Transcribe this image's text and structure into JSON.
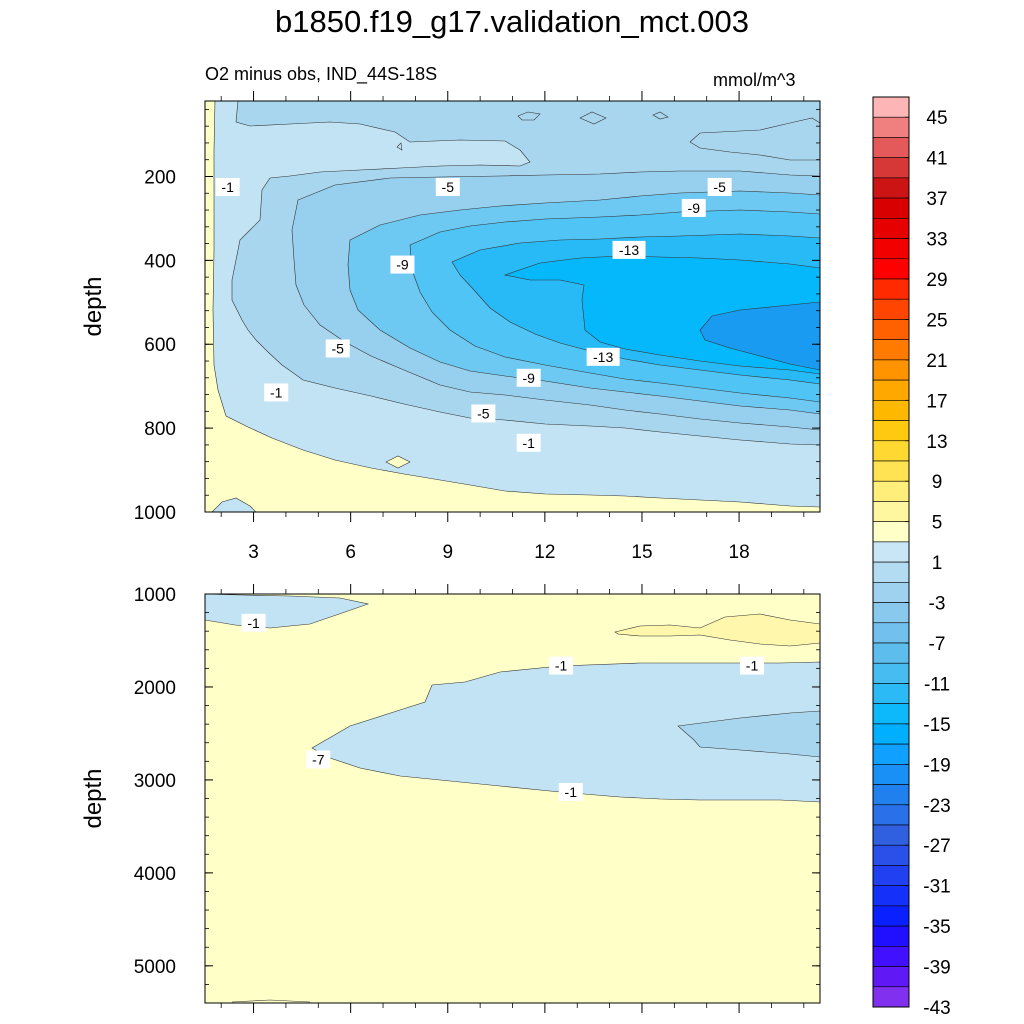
{
  "title": "b1850.f19_g17.validation_mct.003",
  "subtitle": "O2 minus obs, IND_44S-18S",
  "units": "mmol/m^3",
  "colors": {
    "neg1": "#c2e3f4",
    "neg3": "#a9d6ef",
    "neg7": "#97d0ee",
    "neg11": "#6ec9f2",
    "neg13": "#4fc4f5",
    "neg15": "#28b9f7",
    "neg19": "#04b8fb",
    "neg23": "#1a9bf2",
    "pos1": "#ffffc8",
    "pos5": "#fff8ac"
  },
  "chart_data": [
    {
      "type": "contour",
      "panel": "upper",
      "xlabel": "",
      "ylabel": "depth",
      "xlim": [
        1.5,
        20.5
      ],
      "ylim": [
        1000,
        20
      ],
      "x_ticks": [
        3,
        6,
        9,
        12,
        15,
        18
      ],
      "y_ticks": [
        200,
        400,
        600,
        800,
        1000
      ],
      "contour_labels": [
        {
          "x": 2.2,
          "y": 225,
          "text": "-1"
        },
        {
          "x": 3.7,
          "y": 715,
          "text": "-1"
        },
        {
          "x": 11.5,
          "y": 835,
          "text": "-1"
        },
        {
          "x": 9.0,
          "y": 225,
          "text": "-5"
        },
        {
          "x": 17.4,
          "y": 225,
          "text": "-5"
        },
        {
          "x": 5.6,
          "y": 610,
          "text": "-5"
        },
        {
          "x": 10.1,
          "y": 765,
          "text": "-5"
        },
        {
          "x": 16.6,
          "y": 275,
          "text": "-9"
        },
        {
          "x": 7.6,
          "y": 410,
          "text": "-9"
        },
        {
          "x": 11.5,
          "y": 680,
          "text": "-9"
        },
        {
          "x": 14.6,
          "y": 375,
          "text": "-13"
        },
        {
          "x": 13.8,
          "y": 630,
          "text": "-13"
        }
      ],
      "min_level_region": {
        "x_range": [
          16,
          20.5
        ],
        "y_range": [
          460,
          640
        ],
        "level": -23
      }
    },
    {
      "type": "contour",
      "panel": "lower",
      "xlabel": "",
      "ylabel": "depth",
      "xlim": [
        1.5,
        20.5
      ],
      "ylim": [
        5400,
        1000
      ],
      "x_ticks": [
        3,
        6,
        9,
        12,
        15,
        18
      ],
      "y_ticks": [
        1000,
        2000,
        3000,
        4000,
        5000
      ],
      "contour_labels": [
        {
          "x": 3.0,
          "y": 1310,
          "text": "-1"
        },
        {
          "x": 12.5,
          "y": 1770,
          "text": "-1"
        },
        {
          "x": 18.4,
          "y": 1770,
          "text": "-1"
        },
        {
          "x": 12.8,
          "y": 3130,
          "text": "-1"
        },
        {
          "x": 5.0,
          "y": 2780,
          "text": "-7"
        }
      ]
    },
    {
      "type": "colorbar",
      "levels": [
        45,
        41,
        37,
        33,
        29,
        25,
        21,
        17,
        13,
        9,
        5,
        1,
        -3,
        -7,
        -11,
        -15,
        -19,
        -23,
        -27,
        -31,
        -35,
        -39,
        -43
      ],
      "labels": [
        "45",
        "41",
        "37",
        "33",
        "29",
        "25",
        "21",
        "17",
        "13",
        "9",
        "5",
        "1",
        "-3",
        "-7",
        "-11",
        "-15",
        "-19",
        "-23",
        "-27",
        "-31",
        "-35",
        "-39",
        "-43"
      ],
      "colors": [
        "#fdb5b5",
        "#f08080",
        "#e45a5a",
        "#d63737",
        "#cc1414",
        "#d80000",
        "#e60000",
        "#f20000",
        "#ff0000",
        "#ff2a00",
        "#ff4500",
        "#ff6100",
        "#ff7b00",
        "#ff9400",
        "#ffa800",
        "#ffb800",
        "#ffc910",
        "#ffd832",
        "#ffe352",
        "#ffee7a",
        "#fff6a0",
        "#ffffc8",
        "#c8e6f5",
        "#b3dcf2",
        "#9fd2ef",
        "#89c9ee",
        "#72c0ed",
        "#5dbded",
        "#47bcf0",
        "#2cbaf6",
        "#0db8fb",
        "#00afff",
        "#10a0ff",
        "#1890f5",
        "#2080ee",
        "#2a70e8",
        "#3060e0",
        "#2a50ea",
        "#2040f2",
        "#1530f8",
        "#0a20fe",
        "#2010ff",
        "#4010ff",
        "#6018f5",
        "#8030ee"
      ]
    }
  ]
}
